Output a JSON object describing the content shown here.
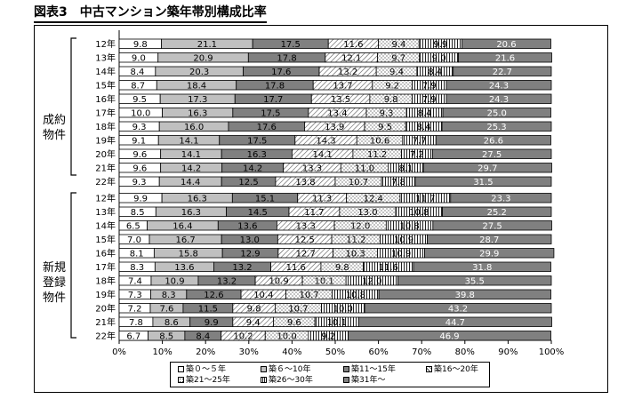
{
  "chart_data": {
    "type": "bar",
    "orientation": "horizontal",
    "stacked": "percent",
    "title": "図表3　中古マンション築年帯別構成比率",
    "xlim": [
      0,
      100
    ],
    "x_ticks": [
      "0%",
      "10%",
      "20%",
      "30%",
      "40%",
      "50%",
      "60%",
      "70%",
      "80%",
      "90%",
      "100%"
    ],
    "legend_position": "bottom",
    "series": [
      {
        "name": "築０～５年",
        "color": "#ffffff"
      },
      {
        "name": "築６～10年",
        "color": "#c0c0c0"
      },
      {
        "name": "築11～15年",
        "color": "#808080"
      },
      {
        "name": "築16～20年",
        "color": "#e8e8e8"
      },
      {
        "name": "築21～25年",
        "color": "#ffffff"
      },
      {
        "name": "築26～30年",
        "color": "#ffffff"
      },
      {
        "name": "築31年～",
        "color": "#808080"
      }
    ],
    "groups": [
      {
        "label": [
          "成約",
          "物件"
        ],
        "rows": [
          {
            "year": "12年",
            "values": [
              9.8,
              21.1,
              17.5,
              11.6,
              9.4,
              9.9,
              20.6
            ]
          },
          {
            "year": "13年",
            "values": [
              9.0,
              20.9,
              17.8,
              12.1,
              9.7,
              9.0,
              21.6
            ]
          },
          {
            "year": "14年",
            "values": [
              8.4,
              20.3,
              17.6,
              13.2,
              9.4,
              8.4,
              22.7
            ]
          },
          {
            "year": "15年",
            "values": [
              8.7,
              18.4,
              17.8,
              13.7,
              9.2,
              7.9,
              24.3
            ]
          },
          {
            "year": "16年",
            "values": [
              9.5,
              17.3,
              17.7,
              13.5,
              9.8,
              7.9,
              24.3
            ]
          },
          {
            "year": "17年",
            "values": [
              10.0,
              16.3,
              17.5,
              13.4,
              9.3,
              8.4,
              25.0
            ]
          },
          {
            "year": "18年",
            "values": [
              9.3,
              16.0,
              17.6,
              13.9,
              9.5,
              8.4,
              25.3
            ]
          },
          {
            "year": "19年",
            "values": [
              9.1,
              14.1,
              17.5,
              14.3,
              10.6,
              7.7,
              26.6
            ]
          },
          {
            "year": "20年",
            "values": [
              9.6,
              14.1,
              16.3,
              14.1,
              11.2,
              7.2,
              27.5
            ]
          },
          {
            "year": "21年",
            "values": [
              9.6,
              14.2,
              14.2,
              13.3,
              11.0,
              8.1,
              29.7
            ]
          },
          {
            "year": "22年",
            "values": [
              9.3,
              14.4,
              12.5,
              13.8,
              10.7,
              7.8,
              31.5
            ]
          }
        ]
      },
      {
        "label": [
          "新規",
          "登録",
          "物件"
        ],
        "rows": [
          {
            "year": "12年",
            "values": [
              9.9,
              16.3,
              15.1,
              11.3,
              12.4,
              11.7,
              23.3
            ]
          },
          {
            "year": "13年",
            "values": [
              8.5,
              16.3,
              14.5,
              11.7,
              13.0,
              10.8,
              25.2
            ]
          },
          {
            "year": "14年",
            "values": [
              6.5,
              16.4,
              13.6,
              13.3,
              12.0,
              10.8,
              27.5
            ]
          },
          {
            "year": "15年",
            "values": [
              7.0,
              16.7,
              13.0,
              12.5,
              11.2,
              10.9,
              28.7
            ]
          },
          {
            "year": "16年",
            "values": [
              8.1,
              15.8,
              12.9,
              12.7,
              10.3,
              10.9,
              29.9
            ]
          },
          {
            "year": "17年",
            "values": [
              8.3,
              13.6,
              13.2,
              11.6,
              9.8,
              11.6,
              31.8
            ]
          },
          {
            "year": "18年",
            "values": [
              7.4,
              10.9,
              13.2,
              10.9,
              10.1,
              12.0,
              35.5
            ]
          },
          {
            "year": "19年",
            "values": [
              7.3,
              8.3,
              12.6,
              10.4,
              10.7,
              10.8,
              39.8
            ]
          },
          {
            "year": "20年",
            "values": [
              7.2,
              7.6,
              11.5,
              9.8,
              10.7,
              10.0,
              43.2
            ]
          },
          {
            "year": "21年",
            "values": [
              7.8,
              8.6,
              9.9,
              9.4,
              9.6,
              10.1,
              44.7
            ]
          },
          {
            "year": "22年",
            "values": [
              6.7,
              8.5,
              8.4,
              10.2,
              10.0,
              9.2,
              46.9
            ]
          }
        ]
      }
    ]
  }
}
